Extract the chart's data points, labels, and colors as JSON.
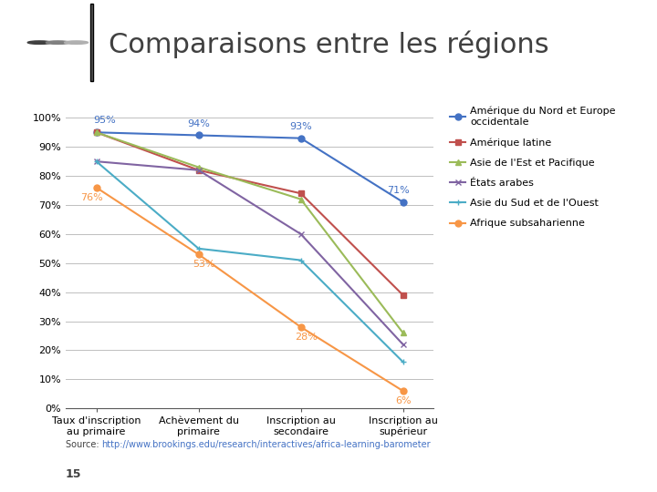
{
  "title": "Comparaisons entre les régions",
  "categories": [
    "Taux d'inscription\nau primaire",
    "Achèvement du\nprimaire",
    "Inscription au\nsecondaire",
    "Inscription au\nsupérieur"
  ],
  "series": [
    {
      "name": "Amérique du Nord et Europe\noccidentale",
      "values": [
        95,
        94,
        93,
        71
      ],
      "color": "#4472C4",
      "marker": "o",
      "labels": [
        "95%",
        "94%",
        "93%",
        "71%"
      ]
    },
    {
      "name": "Amérique latine",
      "values": [
        95,
        82,
        74,
        39
      ],
      "color": "#C0504D",
      "marker": "s",
      "labels": [
        null,
        null,
        null,
        null
      ]
    },
    {
      "name": "Asie de l'Est et Pacifique",
      "values": [
        95,
        83,
        72,
        26
      ],
      "color": "#9BBB59",
      "marker": "^",
      "labels": [
        null,
        null,
        null,
        null
      ]
    },
    {
      "name": "États arabes",
      "values": [
        85,
        82,
        60,
        22
      ],
      "color": "#8064A2",
      "marker": "x",
      "labels": [
        null,
        null,
        null,
        null
      ]
    },
    {
      "name": "Asie du Sud et de l'Ouest",
      "values": [
        85,
        55,
        51,
        16
      ],
      "color": "#4BACC6",
      "marker": "+",
      "labels": [
        null,
        null,
        null,
        null
      ]
    },
    {
      "name": "Afrique subsaharienne",
      "values": [
        76,
        53,
        28,
        6
      ],
      "color": "#F79646",
      "marker": "o",
      "labels": [
        "76%",
        "53%",
        "28%",
        "6%"
      ]
    }
  ],
  "ylim": [
    0,
    105
  ],
  "yticks": [
    0,
    10,
    20,
    30,
    40,
    50,
    60,
    70,
    80,
    90,
    100
  ],
  "ytick_labels": [
    "0%",
    "10%",
    "20%",
    "30%",
    "40%",
    "50%",
    "60%",
    "70%",
    "80%",
    "90%",
    "100%"
  ],
  "source_link": "http://www.brookings.edu/research/interactives/africa-learning-barometer",
  "footnote": "15",
  "background_color": "#FFFFFF",
  "title_fontsize": 22,
  "axis_fontsize": 8,
  "legend_fontsize": 8,
  "annotation_fontsize": 8,
  "grid_color": "#BFBFBF",
  "title_color": "#404040",
  "header_line_color": "#595959"
}
